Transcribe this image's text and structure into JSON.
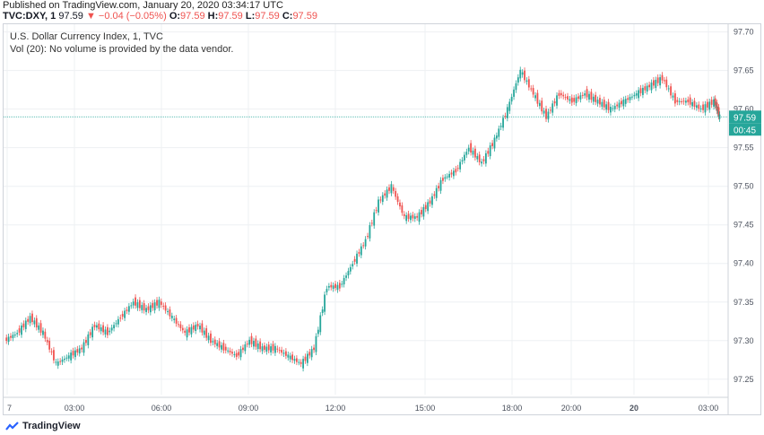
{
  "header": {
    "published": "Published on TradingView.com, January 20, 2020 03:34:17 UTC",
    "symbol": "TVC:DXY, 1",
    "last": "97.59",
    "change": "−0.04 (−0.05%)",
    "o_label": "O:",
    "o_value": "97.59",
    "h_label": "H:",
    "h_value": "97.59",
    "l_label": "L:",
    "l_value": "97.59",
    "c_label": "C:",
    "c_value": "97.59"
  },
  "legend": {
    "title": "U.S. Dollar Currency Index, 1, TVC",
    "volume_note": "Vol (20): No volume is provided by the data vendor."
  },
  "footer": {
    "brand": "TradingView"
  },
  "colors": {
    "up": "#26a69a",
    "down": "#ef5350",
    "last_line": "#26a69a",
    "grid": "#eef0f3"
  },
  "chart_data": {
    "type": "line",
    "title": "U.S. Dollar Currency Index, 1, TVC",
    "x_tick_labels": [
      "7",
      "03:00",
      "06:00",
      "09:00",
      "12:00",
      "15:00",
      "18:00",
      "20:00",
      "20",
      "03:00"
    ],
    "y_tick_labels": [
      "97.70",
      "97.65",
      "97.60",
      "97.55",
      "97.50",
      "97.45",
      "97.40",
      "97.35",
      "97.30",
      "97.25"
    ],
    "ylim": [
      97.23,
      97.71
    ],
    "last_price": "97.59",
    "countdown": "00:45",
    "series": [
      {
        "x": [
          0,
          0.5,
          1,
          1.5,
          2,
          2.5,
          3,
          3.5,
          4,
          4.5,
          5,
          5.5,
          6,
          6.5,
          7,
          7.5,
          8,
          8.5,
          9,
          9.5,
          10,
          10.5,
          11,
          11.5,
          12,
          12.5,
          13,
          13.5,
          14,
          14.5,
          15,
          15.5,
          16,
          16.5,
          17,
          17.5,
          18,
          18.5,
          19,
          19.5,
          20,
          20.5,
          21,
          21.5,
          22,
          22.5,
          23,
          23.5,
          24,
          24.5,
          25,
          25.5,
          26,
          26.5,
          27,
          27.5,
          27.7
        ],
        "y": [
          97.3,
          97.31,
          97.33,
          97.31,
          97.27,
          97.28,
          97.29,
          97.32,
          97.31,
          97.33,
          97.35,
          97.34,
          97.35,
          97.33,
          97.31,
          97.32,
          97.3,
          97.29,
          97.28,
          97.3,
          97.29,
          97.29,
          97.28,
          97.27,
          97.29,
          97.37,
          97.37,
          97.4,
          97.43,
          97.48,
          97.5,
          97.46,
          97.46,
          97.48,
          97.51,
          97.52,
          97.55,
          97.53,
          97.56,
          97.6,
          97.65,
          97.62,
          97.59,
          97.62,
          97.61,
          97.62,
          97.61,
          97.6,
          97.61,
          97.62,
          97.63,
          97.64,
          97.61,
          97.61,
          97.6,
          97.61,
          97.59
        ]
      }
    ]
  }
}
